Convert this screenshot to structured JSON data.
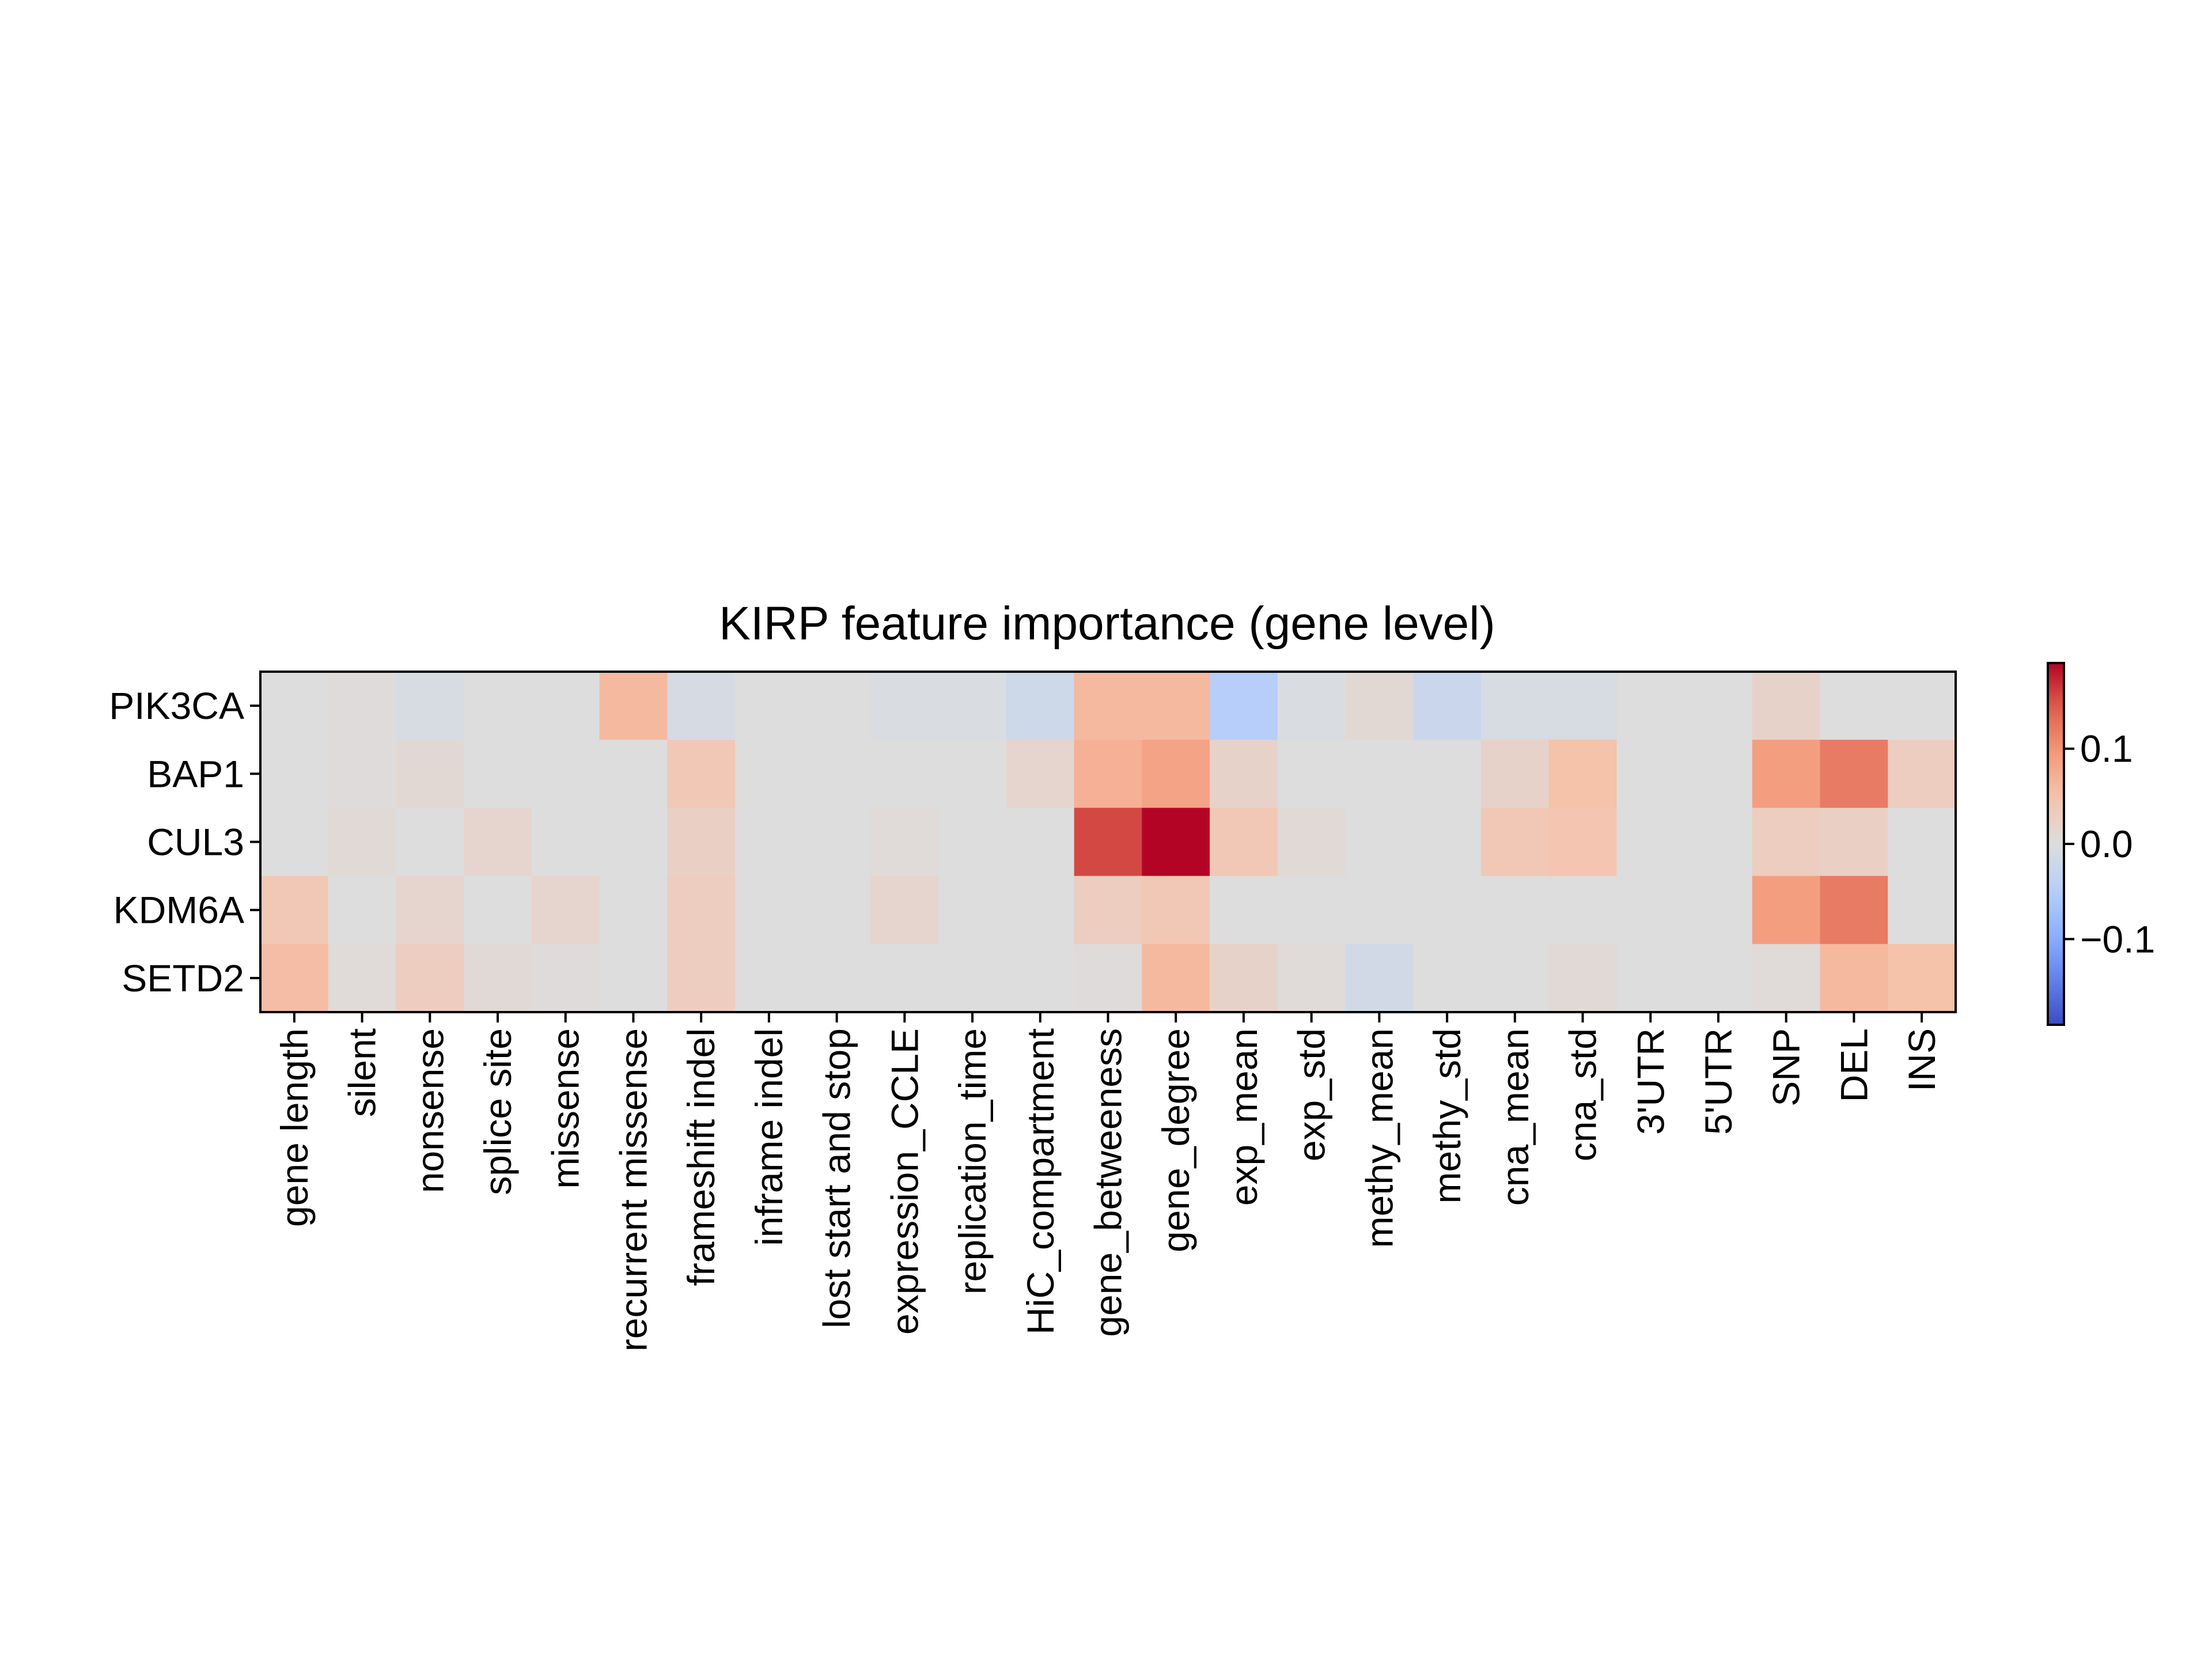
{
  "chart_data": {
    "type": "heatmap",
    "title": "KIRP feature importance (gene level)",
    "xlabel": "",
    "ylabel": "",
    "rows": [
      "PIK3CA",
      "BAP1",
      "CUL3",
      "KDM6A",
      "SETD2"
    ],
    "columns": [
      "gene length",
      "silent",
      "nonsense",
      "splice site",
      "missense",
      "recurrent missense",
      "frameshift indel",
      "inframe indel",
      "lost start and stop",
      "expression_CCLE",
      "replication_time",
      "HiC_compartment",
      "gene_betweeness",
      "gene_degree",
      "exp_mean",
      "exp_std",
      "methy_mean",
      "methy_std",
      "cna_mean",
      "cna_std",
      "3'UTR",
      "5'UTR",
      "SNP",
      "DEL",
      "INS"
    ],
    "values": [
      [
        0.0,
        0.003,
        -0.008,
        0.0,
        0.0,
        0.06,
        -0.01,
        0.0,
        0.0,
        -0.005,
        -0.005,
        -0.02,
        0.06,
        0.06,
        -0.05,
        -0.005,
        0.01,
        -0.025,
        -0.008,
        -0.008,
        0.0,
        0.0,
        0.02,
        0.0,
        0.0
      ],
      [
        0.0,
        0.003,
        0.01,
        0.0,
        0.0,
        0.0,
        0.04,
        0.0,
        0.0,
        0.0,
        0.0,
        0.015,
        0.07,
        0.085,
        0.02,
        0.0,
        0.0,
        0.0,
        0.02,
        0.05,
        0.0,
        0.0,
        0.09,
        0.12,
        0.03
      ],
      [
        0.0,
        0.008,
        0.0,
        0.015,
        0.0,
        0.0,
        0.025,
        0.0,
        0.0,
        0.005,
        0.0,
        0.0,
        0.155,
        0.19,
        0.04,
        0.008,
        0.0,
        0.0,
        0.04,
        0.045,
        0.0,
        0.0,
        0.03,
        0.025,
        0.0
      ],
      [
        0.04,
        0.0,
        0.015,
        0.0,
        0.015,
        0.0,
        0.03,
        0.0,
        0.0,
        0.015,
        0.0,
        0.0,
        0.03,
        0.04,
        0.0,
        0.0,
        0.0,
        0.0,
        0.0,
        0.0,
        0.0,
        0.0,
        0.09,
        0.12,
        0.0
      ],
      [
        0.055,
        0.005,
        0.03,
        0.008,
        0.003,
        0.0,
        0.03,
        0.0,
        0.0,
        0.0,
        0.0,
        0.0,
        0.003,
        0.06,
        0.02,
        0.005,
        -0.015,
        0.0,
        0.0,
        0.008,
        0.0,
        0.0,
        0.005,
        0.06,
        0.05
      ]
    ],
    "colormap": "coolwarm",
    "vmin": -0.19,
    "vmax": 0.19,
    "colorbar_ticks": [
      0.1,
      0.0,
      -0.1
    ],
    "colorbar_tick_labels": [
      "0.1",
      "0.0",
      "−0.1"
    ],
    "grid": false
  }
}
